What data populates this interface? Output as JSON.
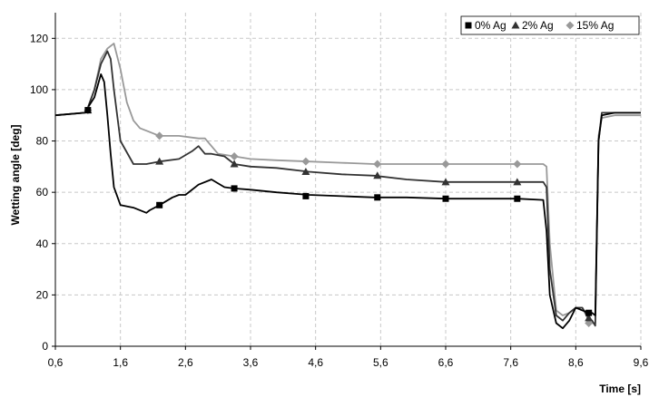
{
  "chart_data": {
    "type": "line",
    "xlabel": "Time [s]",
    "ylabel": "Wetting angle [deg]",
    "xlim": [
      0.6,
      9.6
    ],
    "ylim": [
      0,
      130
    ],
    "x_ticks": [
      "0,6",
      "1,6",
      "2,6",
      "3,6",
      "4,6",
      "5,6",
      "6,6",
      "7,6",
      "8,6",
      "9,6"
    ],
    "x_tick_values": [
      0.6,
      1.6,
      2.6,
      3.6,
      4.6,
      5.6,
      6.6,
      7.6,
      8.6,
      9.6
    ],
    "y_ticks": [
      "0",
      "20",
      "40",
      "60",
      "80",
      "100",
      "120"
    ],
    "y_tick_values": [
      0,
      20,
      40,
      60,
      80,
      100,
      120
    ],
    "grid": true,
    "grid_style": "dashed",
    "legend_position": "top-right",
    "series": [
      {
        "name": "0% Ag",
        "color": "#000000",
        "marker": "square",
        "x": [
          0.6,
          1.05,
          1.1,
          1.2,
          1.3,
          1.35,
          1.4,
          1.45,
          1.5,
          1.6,
          1.8,
          2.0,
          2.05,
          2.2,
          2.4,
          2.5,
          2.6,
          2.8,
          3.0,
          3.2,
          3.35,
          3.6,
          4.0,
          4.5,
          5.0,
          5.5,
          6.0,
          6.6,
          7.0,
          7.7,
          8.1,
          8.15,
          8.2,
          8.3,
          8.4,
          8.5,
          8.6,
          8.7,
          8.8,
          8.85,
          8.9,
          8.95,
          9.0,
          9.2,
          9.6
        ],
        "y": [
          90,
          91,
          93,
          97,
          106,
          103,
          90,
          75,
          62,
          55,
          54,
          52,
          53,
          55,
          58,
          59,
          59,
          63,
          65,
          62,
          61.5,
          61,
          60,
          59,
          58.5,
          58,
          58,
          57.5,
          57.5,
          57.5,
          57,
          45,
          20,
          9,
          7,
          10,
          15,
          14,
          13,
          13,
          12,
          80,
          90,
          91,
          91
        ],
        "marker_x": [
          1.1,
          2.2,
          3.35,
          4.45,
          5.55,
          6.6,
          7.7,
          8.8
        ],
        "marker_y": [
          92,
          55,
          61.5,
          58.5,
          58,
          57.5,
          57.5,
          13
        ]
      },
      {
        "name": "2% Ag",
        "color": "#333333",
        "marker": "triangle",
        "x": [
          0.6,
          1.05,
          1.1,
          1.2,
          1.3,
          1.4,
          1.45,
          1.5,
          1.6,
          1.8,
          2.0,
          2.2,
          2.5,
          2.7,
          2.8,
          2.9,
          3.0,
          3.2,
          3.35,
          3.6,
          4.0,
          4.5,
          5.0,
          5.5,
          6.0,
          6.6,
          7.0,
          7.7,
          8.1,
          8.15,
          8.2,
          8.3,
          8.4,
          8.5,
          8.6,
          8.7,
          8.8,
          8.85,
          8.9,
          8.95,
          9.0,
          9.2,
          9.6
        ],
        "y": [
          90,
          91,
          93,
          100,
          110,
          115,
          112,
          100,
          80,
          71,
          71,
          72,
          73,
          76,
          78,
          75,
          75,
          74,
          71,
          70,
          69.5,
          68,
          67,
          66.5,
          65,
          64,
          64,
          64,
          64,
          62,
          30,
          12,
          10,
          13,
          15,
          15,
          11,
          10,
          8,
          80,
          91,
          91,
          91
        ],
        "marker_x": [
          1.1,
          2.2,
          3.35,
          4.45,
          5.55,
          6.6,
          7.7,
          8.8
        ],
        "marker_y": [
          92,
          72,
          71,
          68,
          66.5,
          64,
          64,
          11
        ]
      },
      {
        "name": "15% Ag",
        "color": "#999999",
        "marker": "diamond",
        "x": [
          0.6,
          1.05,
          1.1,
          1.2,
          1.3,
          1.4,
          1.5,
          1.6,
          1.7,
          1.8,
          1.9,
          2.0,
          2.2,
          2.5,
          2.8,
          2.9,
          3.0,
          3.1,
          3.35,
          3.6,
          4.0,
          4.5,
          5.0,
          5.5,
          6.0,
          6.6,
          7.0,
          7.7,
          8.1,
          8.15,
          8.2,
          8.3,
          8.4,
          8.5,
          8.6,
          8.7,
          8.8,
          8.85,
          8.9,
          8.95,
          9.0,
          9.2,
          9.6
        ],
        "y": [
          90,
          91,
          93,
          100,
          112,
          116,
          118,
          108,
          95,
          88,
          85,
          84,
          82,
          82,
          81,
          81,
          78,
          75,
          74,
          73,
          72.5,
          72,
          71.5,
          71,
          71,
          71,
          71,
          71,
          71,
          70,
          40,
          14,
          12,
          13,
          15,
          15,
          10,
          9,
          9,
          82,
          89,
          90,
          90
        ],
        "marker_x": [
          1.1,
          2.2,
          3.35,
          4.45,
          5.55,
          6.6,
          7.7,
          8.8
        ],
        "marker_y": [
          92,
          82,
          74,
          72,
          71,
          71,
          71,
          9
        ]
      }
    ]
  }
}
